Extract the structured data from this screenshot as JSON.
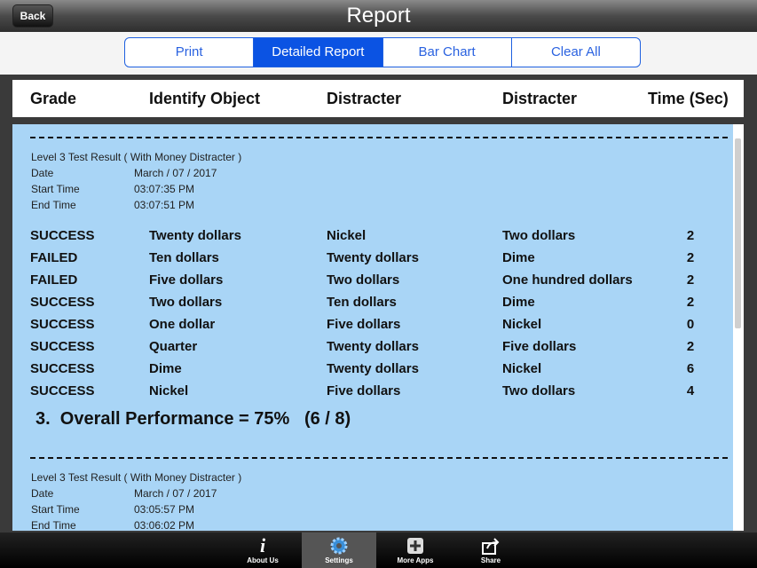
{
  "nav": {
    "back": "Back",
    "title": "Report"
  },
  "tabs": [
    "Print",
    "Detailed Report",
    "Bar Chart",
    "Clear All"
  ],
  "header": [
    "Grade",
    "Identify Object",
    "Distracter",
    "Distracter",
    "Time (Sec)"
  ],
  "results": [
    {
      "title": "Level 3 Test Result ( With Money Distracter )",
      "fields": [
        [
          "Date",
          "March / 07 / 2017"
        ],
        [
          "Start Time",
          "03:07:35 PM"
        ],
        [
          "End Time",
          "03:07:51 PM"
        ]
      ],
      "rows": [
        [
          "SUCCESS",
          "Twenty dollars",
          "Nickel",
          "Two dollars",
          2
        ],
        [
          "FAILED",
          "Ten dollars",
          "Twenty dollars",
          "Dime",
          2
        ],
        [
          "FAILED",
          "Five dollars",
          "Two dollars",
          "One hundred dollars",
          2
        ],
        [
          "SUCCESS",
          "Two dollars",
          "Ten dollars",
          "Dime",
          2
        ],
        [
          "SUCCESS",
          "One dollar",
          "Five dollars",
          "Nickel",
          0
        ],
        [
          "SUCCESS",
          "Quarter",
          "Twenty dollars",
          "Five dollars",
          2
        ],
        [
          "SUCCESS",
          "Dime",
          "Twenty dollars",
          "Nickel",
          6
        ],
        [
          "SUCCESS",
          "Nickel",
          "Five dollars",
          "Two dollars",
          4
        ]
      ],
      "overall": "3.  Overall Performance = 75%   (6 / 8)"
    },
    {
      "title": "Level 3 Test Result ( With Money Distracter )",
      "fields": [
        [
          "Date",
          "March / 07 / 2017"
        ],
        [
          "Start Time",
          "03:05:57 PM"
        ],
        [
          "End Time",
          "03:06:02 PM"
        ]
      ]
    }
  ],
  "toolbar": [
    "About Us",
    "Settings",
    "More Apps",
    "Share"
  ]
}
